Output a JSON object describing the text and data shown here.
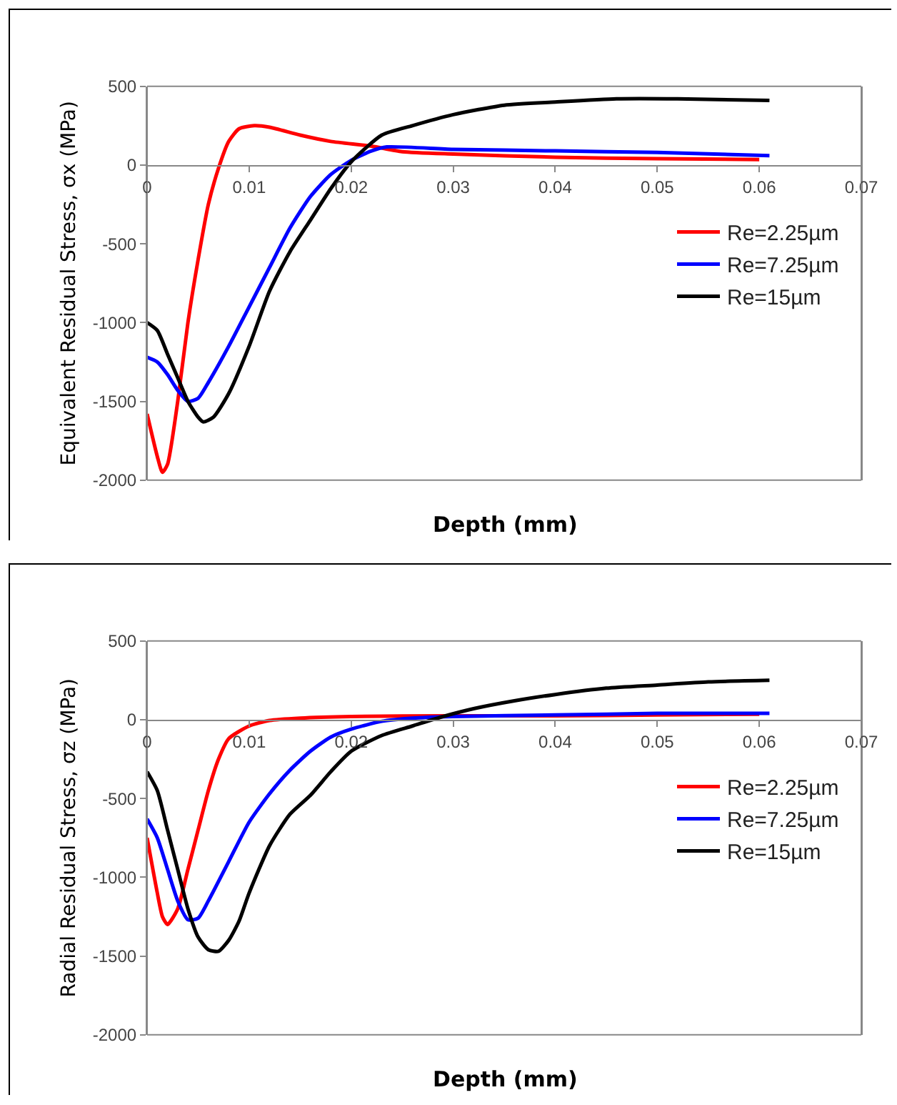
{
  "chart_data": [
    {
      "type": "line",
      "ylabel": "Equivalent Residual Stress, σx (MPa)",
      "xlabel": "Depth (mm)",
      "xlim": [
        0,
        0.07
      ],
      "xticks": [
        0,
        0.01,
        0.02,
        0.03,
        0.04,
        0.05,
        0.06,
        0.07
      ],
      "ylim": [
        -2000,
        500
      ],
      "yticks": [
        -2000,
        -1500,
        -1000,
        -500,
        0,
        500
      ],
      "grid": false,
      "legend": "right",
      "marker": "none",
      "line_style": "solid",
      "series": [
        {
          "name": "Re=2.25µm",
          "color": "#ff0000",
          "x": [
            0,
            0.001,
            0.0015,
            0.002,
            0.003,
            0.004,
            0.005,
            0.006,
            0.007,
            0.008,
            0.009,
            0.0105,
            0.012,
            0.015,
            0.018,
            0.022,
            0.025,
            0.03,
            0.04,
            0.05,
            0.06
          ],
          "values": [
            -1580,
            -1850,
            -1950,
            -1900,
            -1500,
            -1000,
            -600,
            -250,
            -20,
            150,
            230,
            250,
            240,
            190,
            150,
            120,
            85,
            70,
            50,
            40,
            35
          ]
        },
        {
          "name": "Re=7.25µm",
          "color": "#0000ff",
          "x": [
            0,
            0.001,
            0.002,
            0.003,
            0.004,
            0.005,
            0.006,
            0.008,
            0.01,
            0.012,
            0.014,
            0.016,
            0.018,
            0.02,
            0.022,
            0.0235,
            0.03,
            0.04,
            0.05,
            0.061
          ],
          "values": [
            -1220,
            -1250,
            -1330,
            -1430,
            -1500,
            -1480,
            -1380,
            -1150,
            -900,
            -650,
            -400,
            -200,
            -60,
            30,
            90,
            115,
            100,
            90,
            80,
            60
          ]
        },
        {
          "name": "Re=15µm",
          "color": "#000000",
          "x": [
            0,
            0.001,
            0.002,
            0.003,
            0.004,
            0.005,
            0.0055,
            0.0065,
            0.008,
            0.01,
            0.012,
            0.014,
            0.016,
            0.018,
            0.02,
            0.023,
            0.026,
            0.03,
            0.035,
            0.04,
            0.046,
            0.052,
            0.061
          ],
          "values": [
            -1000,
            -1050,
            -1200,
            -1350,
            -1500,
            -1600,
            -1630,
            -1600,
            -1450,
            -1150,
            -800,
            -550,
            -350,
            -150,
            20,
            190,
            250,
            320,
            380,
            400,
            420,
            420,
            410
          ]
        }
      ]
    },
    {
      "type": "line",
      "ylabel": "Radial Residual Stress, σz (MPa)",
      "xlabel": "Depth (mm)",
      "xlim": [
        0,
        0.07
      ],
      "xticks": [
        0,
        0.01,
        0.02,
        0.03,
        0.04,
        0.05,
        0.06,
        0.07
      ],
      "ylim": [
        -2000,
        500
      ],
      "yticks": [
        -2000,
        -1500,
        -1000,
        -500,
        0,
        500
      ],
      "grid": false,
      "legend": "right",
      "marker": "none",
      "line_style": "solid",
      "series": [
        {
          "name": "Re=2.25µm",
          "color": "#ff0000",
          "x": [
            0,
            0.001,
            0.0015,
            0.002,
            0.003,
            0.004,
            0.005,
            0.006,
            0.007,
            0.008,
            0.01,
            0.012,
            0.015,
            0.02,
            0.03,
            0.04,
            0.05,
            0.06
          ],
          "values": [
            -750,
            -1100,
            -1250,
            -1300,
            -1200,
            -950,
            -700,
            -450,
            -250,
            -120,
            -40,
            -5,
            10,
            20,
            25,
            25,
            30,
            35
          ]
        },
        {
          "name": "Re=7.25µm",
          "color": "#0000ff",
          "x": [
            0,
            0.001,
            0.002,
            0.003,
            0.004,
            0.005,
            0.006,
            0.008,
            0.01,
            0.012,
            0.014,
            0.016,
            0.018,
            0.02,
            0.023,
            0.026,
            0.03,
            0.04,
            0.05,
            0.061
          ],
          "values": [
            -630,
            -750,
            -950,
            -1150,
            -1270,
            -1260,
            -1150,
            -900,
            -650,
            -470,
            -320,
            -200,
            -110,
            -60,
            -10,
            10,
            20,
            30,
            40,
            40
          ]
        },
        {
          "name": "Re=15µm",
          "color": "#000000",
          "x": [
            0,
            0.001,
            0.002,
            0.003,
            0.004,
            0.005,
            0.006,
            0.007,
            0.008,
            0.009,
            0.01,
            0.012,
            0.014,
            0.016,
            0.018,
            0.02,
            0.023,
            0.026,
            0.029,
            0.032,
            0.036,
            0.04,
            0.045,
            0.05,
            0.055,
            0.061
          ],
          "values": [
            -330,
            -450,
            -700,
            -950,
            -1200,
            -1380,
            -1460,
            -1470,
            -1400,
            -1280,
            -1100,
            -800,
            -600,
            -480,
            -330,
            -200,
            -100,
            -40,
            20,
            70,
            120,
            160,
            200,
            220,
            240,
            250
          ]
        }
      ]
    }
  ]
}
